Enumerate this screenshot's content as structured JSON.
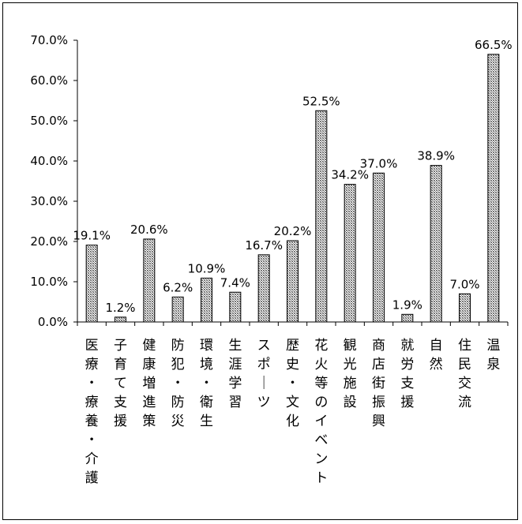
{
  "chart_data": {
    "type": "bar",
    "title": "",
    "xlabel": "",
    "ylabel": "",
    "ylim": [
      0,
      70
    ],
    "yticks": [
      "0.0%",
      "10.0%",
      "20.0%",
      "30.0%",
      "40.0%",
      "50.0%",
      "60.0%",
      "70.0%"
    ],
    "grid": false,
    "legend": "none",
    "bar_color": "#a0a0a0",
    "categories": [
      "医療・療養・介護",
      "子育て支援",
      "健康増進策",
      "防犯・防災",
      "環境・衛生",
      "生涯学習",
      "スポーツ",
      "歴史・文化",
      "花火等のイベント",
      "観光施設",
      "商店街振興",
      "就労支援",
      "自然",
      "住民交流",
      "温泉"
    ],
    "values": [
      19.1,
      1.2,
      20.6,
      6.2,
      10.9,
      7.4,
      16.7,
      20.2,
      52.5,
      34.2,
      37.0,
      1.9,
      38.9,
      7.0,
      66.5
    ],
    "data_labels": [
      "19.1%",
      "1.2%",
      "20.6%",
      "6.2%",
      "10.9%",
      "7.4%",
      "16.7%",
      "20.2%",
      "52.5%",
      "34.2%",
      "37.0%",
      "1.9%",
      "38.9%",
      "7.0%",
      "66.5%"
    ]
  }
}
